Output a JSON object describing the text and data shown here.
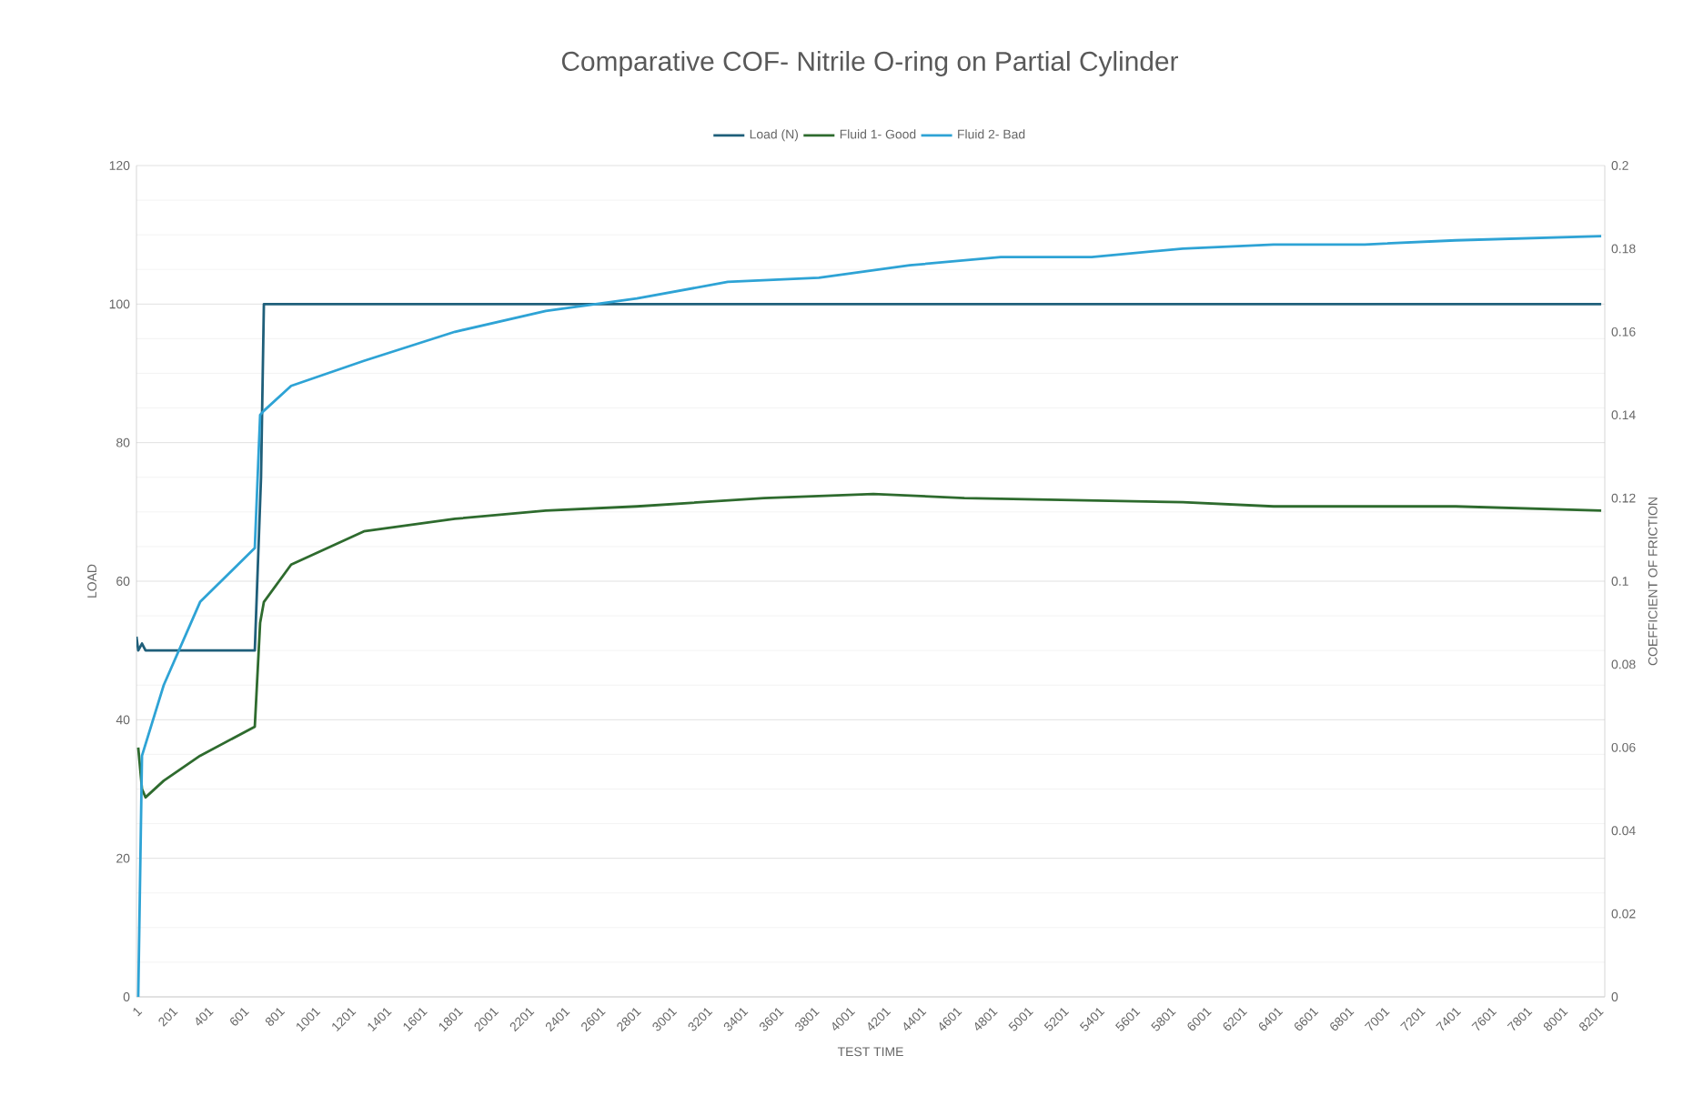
{
  "chart_data": {
    "type": "line",
    "title": "Comparative COF- Nitrile O-ring on Partial Cylinder",
    "xlabel": "TEST TIME",
    "ylabel": "LOAD",
    "y2label": "COEFFICIENT OF FRICTION",
    "xlim": [
      1,
      8240
    ],
    "xticks": [
      1,
      201,
      401,
      601,
      801,
      1001,
      1201,
      1401,
      1601,
      1801,
      2001,
      2201,
      2401,
      2601,
      2801,
      3001,
      3201,
      3401,
      3601,
      3801,
      4001,
      4201,
      4401,
      4601,
      4801,
      5001,
      5201,
      5401,
      5601,
      5801,
      6001,
      6201,
      6401,
      6601,
      6801,
      7001,
      7201,
      7401,
      7601,
      7801,
      8001,
      8201
    ],
    "ylim": [
      0,
      120
    ],
    "yticks": [
      0,
      20,
      40,
      60,
      80,
      100,
      120
    ],
    "y2lim": [
      0,
      0.2
    ],
    "y2ticks": [
      0,
      0.02,
      0.04,
      0.06,
      0.08,
      0.1,
      0.12,
      0.14,
      0.16,
      0.18,
      0.2
    ],
    "grid": "y",
    "legend": "top",
    "series": [
      {
        "name": "Load (N)",
        "color": "#1f5f7a",
        "axis": "y",
        "x": [
          1,
          11,
          32,
          52,
          154,
          358,
          665,
          700,
          716,
          1277,
          2298,
          3319,
          4340,
          5361,
          6382,
          7403,
          8220
        ],
        "values": [
          52,
          50,
          51,
          50,
          50,
          50,
          50,
          75,
          100,
          100,
          100,
          100,
          100,
          100,
          100,
          100,
          100
        ]
      },
      {
        "name": "Fluid 1- Good",
        "color": "#2e6b2e",
        "axis": "y2",
        "x": [
          11,
          32,
          52,
          154,
          358,
          665,
          695,
          716,
          869,
          1277,
          1788,
          2298,
          2809,
          3523,
          4136,
          4647,
          5872,
          6382,
          7403,
          8220
        ],
        "values": [
          0.06,
          0.05,
          0.048,
          0.052,
          0.058,
          0.065,
          0.09,
          0.095,
          0.104,
          0.112,
          0.115,
          0.117,
          0.118,
          0.12,
          0.121,
          0.12,
          0.119,
          0.118,
          0.118,
          0.117
        ]
      },
      {
        "name": "Fluid 2- Bad",
        "color": "#2ea3d5",
        "axis": "y2",
        "x": [
          11,
          32,
          154,
          358,
          665,
          695,
          716,
          869,
          1277,
          1788,
          2298,
          2809,
          3319,
          3830,
          4340,
          4851,
          5361,
          5872,
          6382,
          6893,
          7403,
          8220
        ],
        "values": [
          0,
          0.058,
          0.075,
          0.095,
          0.108,
          0.14,
          0.141,
          0.147,
          0.153,
          0.16,
          0.165,
          0.168,
          0.172,
          0.173,
          0.176,
          0.178,
          0.178,
          0.18,
          0.181,
          0.181,
          0.182,
          0.183
        ]
      }
    ]
  }
}
